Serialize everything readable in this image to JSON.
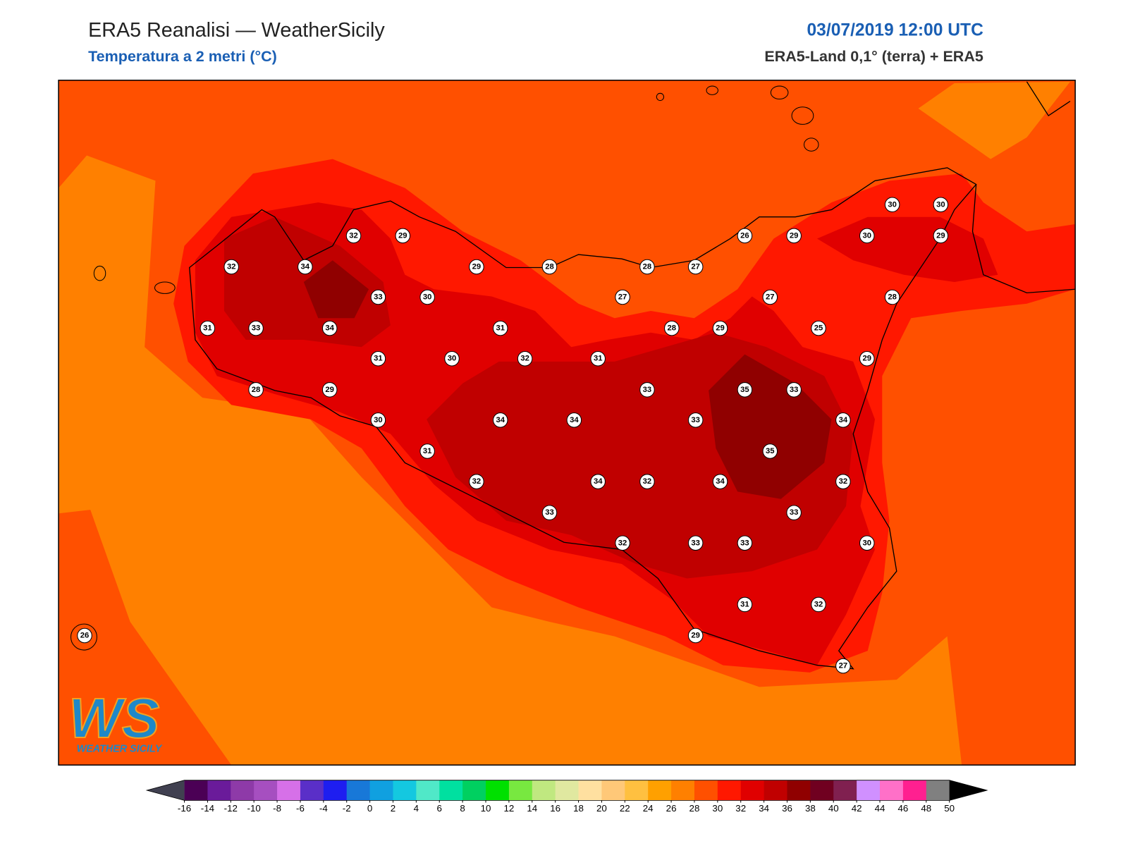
{
  "header": {
    "title": "ERA5 Reanalisi — WeatherSicily",
    "subtitle": "Temperatura a 2 metri (°C)",
    "datetime": "03/07/2019 12:00 UTC",
    "source": "ERA5-Land 0,1° (terra) + ERA5"
  },
  "stations": [
    32,
    29,
    32,
    34,
    29,
    28,
    28,
    27,
    26,
    29,
    30,
    29,
    30,
    30,
    33,
    30,
    27,
    27,
    28,
    31,
    33,
    34,
    31,
    28,
    29,
    25,
    31,
    30,
    32,
    31,
    29,
    28,
    29,
    33,
    35,
    33,
    30,
    34,
    34,
    33,
    34,
    31,
    35,
    32,
    34,
    32,
    34,
    32,
    33,
    33,
    32,
    33,
    33,
    30,
    31,
    32,
    29,
    27,
    26
  ],
  "colorbar": {
    "ticks": [
      -16,
      -14,
      -12,
      -10,
      -8,
      -6,
      -4,
      -2,
      0,
      2,
      4,
      6,
      8,
      10,
      12,
      14,
      16,
      18,
      20,
      22,
      24,
      26,
      28,
      30,
      32,
      34,
      36,
      38,
      40,
      42,
      44,
      46,
      48,
      50
    ],
    "colors": [
      "#4b0055",
      "#6a1b9a",
      "#8e3aa8",
      "#a64fc0",
      "#d670e8",
      "#5a2fc8",
      "#1e1ef0",
      "#1878d8",
      "#10a0e0",
      "#14c8e0",
      "#50e8c8",
      "#00e0a0",
      "#00d060",
      "#00e000",
      "#78e840",
      "#c0e880",
      "#e0e8a0",
      "#ffe0a0",
      "#ffc878",
      "#ffc040",
      "#ffa000",
      "#ff8000",
      "#ff5000",
      "#ff1800",
      "#e00000",
      "#c00000",
      "#900000",
      "#700020",
      "#802050",
      "#d090ff",
      "#ff70c8",
      "#ff2090",
      "#808080",
      "#404040"
    ],
    "under_color": "#404050",
    "over_color": "#000000"
  },
  "logo": {
    "mark": "WS",
    "text": "WEATHER SICILY"
  }
}
